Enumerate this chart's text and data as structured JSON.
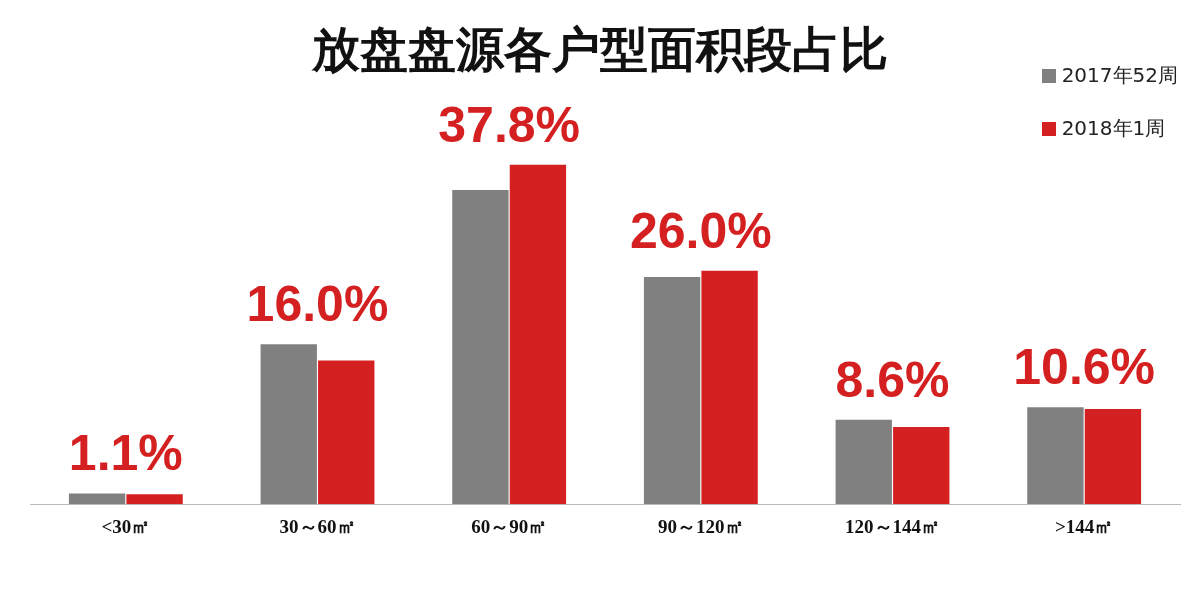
{
  "chart_data": {
    "type": "bar",
    "title": "放盘盘源各户型面积段占比",
    "categories": [
      "<30㎡",
      "30～60㎡",
      "60～90㎡",
      "90～120㎡",
      "120～144㎡",
      ">144㎡"
    ],
    "series": [
      {
        "name": "2017年52周",
        "color": "#808080",
        "values": [
          1.2,
          17.8,
          35.0,
          25.3,
          9.4,
          10.8
        ]
      },
      {
        "name": "2018年1周",
        "color": "#d42020",
        "values": [
          1.1,
          16.0,
          37.8,
          26.0,
          8.6,
          10.6
        ],
        "value_labels": [
          "1.1%",
          "16.0%",
          "37.8%",
          "26.0%",
          "8.6%",
          "10.6%"
        ]
      }
    ],
    "legend": "top right",
    "grid": false
  }
}
